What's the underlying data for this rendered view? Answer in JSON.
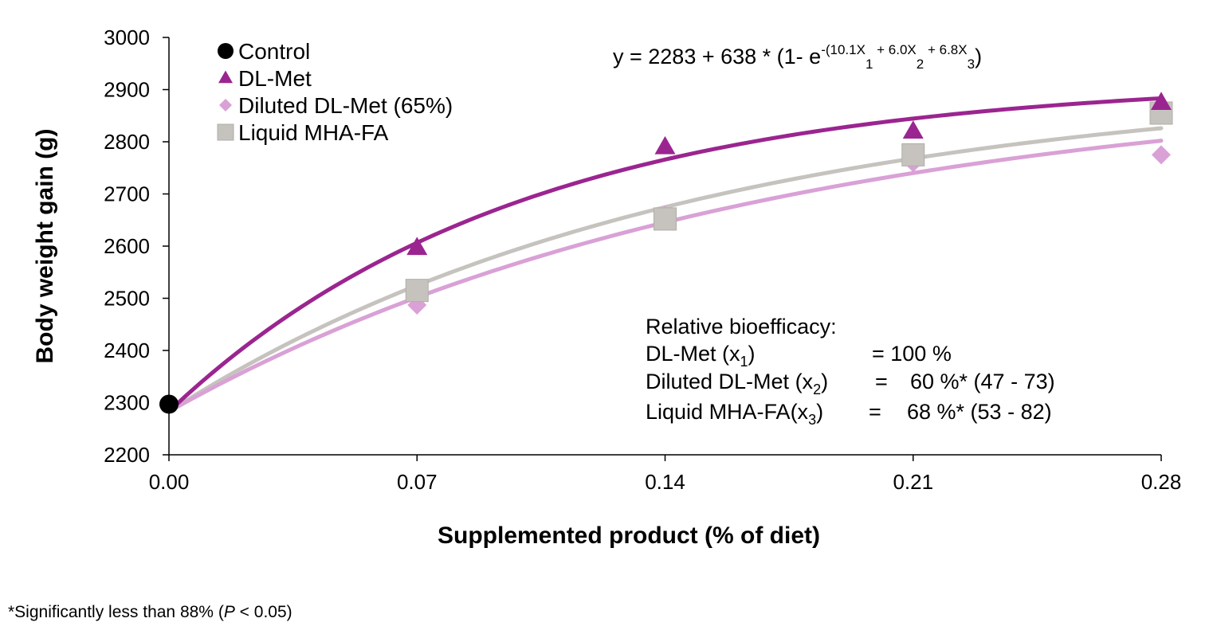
{
  "chart_data": {
    "type": "scatter",
    "xlabel": "Supplemented product (% of diet)",
    "ylabel": "Body weight gain (g)",
    "xlim": [
      0,
      0.28
    ],
    "ylim": [
      2200,
      3000
    ],
    "x_ticks": [
      "0.00",
      "0.07",
      "0.14",
      "0.21",
      "0.28"
    ],
    "y_ticks": [
      "2200",
      "2300",
      "2400",
      "2500",
      "2600",
      "2700",
      "2800",
      "2900",
      "3000"
    ],
    "grid": false,
    "legend_position": "top-left",
    "series": [
      {
        "name": "Control",
        "marker": "circle",
        "color": "#000000",
        "points": [
          {
            "x": 0.0,
            "y": 2297
          }
        ]
      },
      {
        "name": "DL-Met",
        "marker": "triangle",
        "color": "#9b2590",
        "points": [
          {
            "x": 0.07,
            "y": 2597
          },
          {
            "x": 0.14,
            "y": 2790
          },
          {
            "x": 0.21,
            "y": 2820
          },
          {
            "x": 0.28,
            "y": 2875
          }
        ],
        "fit_coefficient": 10.1
      },
      {
        "name": "Diluted DL-Met (65%)",
        "marker": "diamond",
        "color": "#d9a1d6",
        "points": [
          {
            "x": 0.07,
            "y": 2487
          },
          {
            "x": 0.14,
            "y": 2660
          },
          {
            "x": 0.21,
            "y": 2760
          },
          {
            "x": 0.28,
            "y": 2775
          }
        ],
        "fit_coefficient": 6.0
      },
      {
        "name": "Liquid MHA-FA",
        "marker": "square",
        "color": "#c6c3bf",
        "points": [
          {
            "x": 0.07,
            "y": 2515
          },
          {
            "x": 0.14,
            "y": 2652
          },
          {
            "x": 0.21,
            "y": 2775
          },
          {
            "x": 0.28,
            "y": 2855
          }
        ],
        "fit_coefficient": 6.8
      }
    ],
    "fit_model": {
      "intercept": 2283,
      "asymptote_gain": 638
    },
    "equation": {
      "lead": "y = 2283 + 638 * (1- e",
      "exp_a": "-(10.1X",
      "sub1": "1",
      "exp_b": " + 6.0X",
      "sub2": "2",
      "exp_c": " + 6.8X",
      "sub3": "3",
      "tail": ")"
    },
    "bioefficacy": {
      "heading": "Relative bioefficacy:",
      "rows": [
        {
          "label": "DL-Met (x",
          "sub": "1",
          "close": ")",
          "eq": "= 100 %",
          "rest": ""
        },
        {
          "label": "Diluted DL-Met (x",
          "sub": "2",
          "close": ")",
          "eq": "=",
          "rest": "60 %* (47 - 73)"
        },
        {
          "label": "Liquid MHA-FA(x",
          "sub": "3",
          "close": ")",
          "eq": "=",
          "rest": "68 %* (53 - 82)"
        }
      ]
    }
  },
  "footnote": {
    "pre": "*Significantly less than 88% (",
    "p": "P",
    "post": " < 0.05)"
  }
}
